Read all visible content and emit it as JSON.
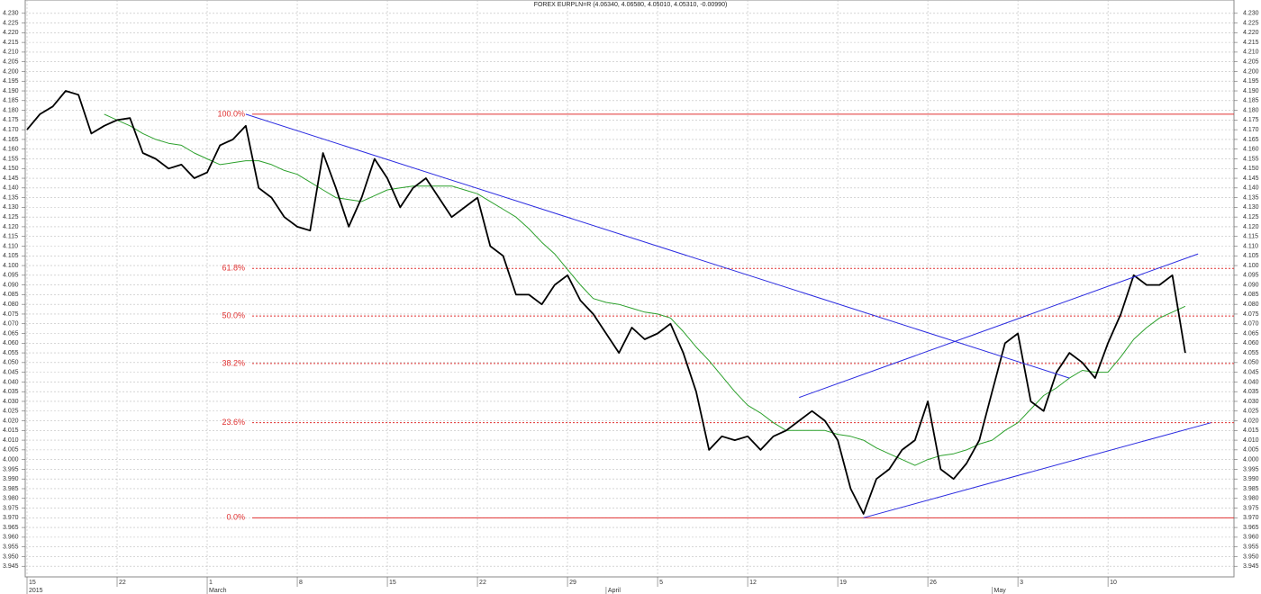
{
  "chart_data": {
    "type": "line",
    "title": "FOREX EURPLN=R (4.06340, 4.06580, 4.05010, 4.05310, -0.00990)",
    "x": [
      "2015-02-15",
      "2015-02-16",
      "2015-02-17",
      "2015-02-18",
      "2015-02-19",
      "2015-02-20",
      "2015-02-21",
      "2015-02-22",
      "2015-02-23",
      "2015-02-24",
      "2015-02-25",
      "2015-02-26",
      "2015-02-27",
      "2015-02-28",
      "2015-03-01",
      "2015-03-02",
      "2015-03-03",
      "2015-03-04",
      "2015-03-05",
      "2015-03-06",
      "2015-03-07",
      "2015-03-08",
      "2015-03-09",
      "2015-03-10",
      "2015-03-11",
      "2015-03-12",
      "2015-03-13",
      "2015-03-14",
      "2015-03-15",
      "2015-03-16",
      "2015-03-17",
      "2015-03-18",
      "2015-03-19",
      "2015-03-20",
      "2015-03-21",
      "2015-03-22",
      "2015-03-23",
      "2015-03-24",
      "2015-03-25",
      "2015-03-26",
      "2015-03-27",
      "2015-03-28",
      "2015-03-29",
      "2015-03-30",
      "2015-03-31",
      "2015-04-01",
      "2015-04-02",
      "2015-04-03",
      "2015-04-04",
      "2015-04-05",
      "2015-04-06",
      "2015-04-07",
      "2015-04-08",
      "2015-04-09",
      "2015-04-10",
      "2015-04-11",
      "2015-04-12",
      "2015-04-13",
      "2015-04-14",
      "2015-04-15",
      "2015-04-16",
      "2015-04-17",
      "2015-04-18",
      "2015-04-19",
      "2015-04-20",
      "2015-04-21",
      "2015-04-22",
      "2015-04-23",
      "2015-04-24",
      "2015-04-25",
      "2015-04-26",
      "2015-04-27",
      "2015-04-28",
      "2015-04-29",
      "2015-04-30",
      "2015-05-01",
      "2015-05-02",
      "2015-05-03",
      "2015-05-04",
      "2015-05-05",
      "2015-05-06",
      "2015-05-07",
      "2015-05-08",
      "2015-05-09",
      "2015-05-10",
      "2015-05-11",
      "2015-05-12",
      "2015-05-13",
      "2015-05-14",
      "2015-05-15",
      "2015-05-16"
    ],
    "price": {
      "color": "#000000",
      "values": [
        4.17,
        4.178,
        4.182,
        4.19,
        4.188,
        4.168,
        4.172,
        4.175,
        4.176,
        4.158,
        4.155,
        4.15,
        4.152,
        4.145,
        4.148,
        4.162,
        4.165,
        4.172,
        4.14,
        4.135,
        4.125,
        4.12,
        4.118,
        4.158,
        4.14,
        4.12,
        4.135,
        4.155,
        4.145,
        4.13,
        4.14,
        4.145,
        4.135,
        4.125,
        4.13,
        4.135,
        4.11,
        4.105,
        4.085,
        4.085,
        4.08,
        4.09,
        4.095,
        4.082,
        4.075,
        4.065,
        4.055,
        4.068,
        4.062,
        4.065,
        4.07,
        4.055,
        4.035,
        4.005,
        4.012,
        4.01,
        4.012,
        4.005,
        4.012,
        4.015,
        4.02,
        4.025,
        4.02,
        4.01,
        3.985,
        3.972,
        3.99,
        3.995,
        4.005,
        4.01,
        4.03,
        3.995,
        3.99,
        3.998,
        4.01,
        4.035,
        4.06,
        4.065,
        4.03,
        4.025,
        4.045,
        4.055,
        4.05,
        4.042,
        4.06,
        4.075,
        4.095,
        4.09,
        4.09,
        4.095,
        4.055
      ]
    },
    "moving_average": {
      "color": "#2ca02c",
      "values": [
        null,
        null,
        null,
        null,
        null,
        null,
        4.178,
        4.175,
        4.172,
        4.168,
        4.165,
        4.163,
        4.162,
        4.158,
        4.155,
        4.152,
        4.153,
        4.154,
        4.154,
        4.152,
        4.149,
        4.147,
        4.143,
        4.139,
        4.135,
        4.134,
        4.133,
        4.136,
        4.139,
        4.14,
        4.141,
        4.141,
        4.141,
        4.141,
        4.139,
        4.137,
        4.133,
        4.129,
        4.125,
        4.119,
        4.112,
        4.106,
        4.098,
        4.09,
        4.083,
        4.081,
        4.08,
        4.078,
        4.076,
        4.075,
        4.073,
        4.066,
        4.058,
        4.051,
        4.043,
        4.035,
        4.028,
        4.024,
        4.019,
        4.015,
        4.015,
        4.015,
        4.015,
        4.013,
        4.012,
        4.01,
        4.006,
        4.003,
        4.0,
        3.997,
        4.0,
        4.002,
        4.003,
        4.005,
        4.008,
        4.01,
        4.015,
        4.019,
        4.026,
        4.033,
        4.037,
        4.042,
        4.046,
        4.045,
        4.045,
        4.053,
        4.062,
        4.068,
        4.073,
        4.076,
        4.079
      ]
    },
    "trendlines": {
      "color": "#2b2be0",
      "lines": [
        {
          "x": [
            "2015-03-04",
            "2015-05-07"
          ],
          "values": [
            4.178,
            4.042
          ]
        },
        {
          "x": [
            "2015-04-16",
            "2015-05-17"
          ],
          "values": [
            4.032,
            4.106
          ]
        },
        {
          "x": [
            "2015-04-21",
            "2015-05-18"
          ],
          "values": [
            3.97,
            4.019
          ]
        }
      ]
    },
    "fib_levels": {
      "color": "#e03030",
      "levels": [
        {
          "label": "100.0%",
          "value": 4.178,
          "dashed": false
        },
        {
          "label": "61.8%",
          "value": 4.0985,
          "dashed": true
        },
        {
          "label": "50.0%",
          "value": 4.074,
          "dashed": true
        },
        {
          "label": "38.2%",
          "value": 4.0495,
          "dashed": true
        },
        {
          "label": "23.6%",
          "value": 4.019,
          "dashed": true
        },
        {
          "label": "0.0%",
          "value": 3.97,
          "dashed": false
        }
      ]
    },
    "xlim": [
      "2015-02-15",
      "2015-05-20"
    ],
    "xticks": [
      {
        "value": "2015-02-15",
        "label": "15"
      },
      {
        "value": "2015-02-22",
        "label": "22"
      },
      {
        "value": "2015-03-01",
        "label": "1"
      },
      {
        "value": "2015-03-08",
        "label": "8"
      },
      {
        "value": "2015-03-15",
        "label": "15"
      },
      {
        "value": "2015-03-22",
        "label": "22"
      },
      {
        "value": "2015-03-29",
        "label": "29"
      },
      {
        "value": "2015-04-05",
        "label": "5"
      },
      {
        "value": "2015-04-12",
        "label": "12"
      },
      {
        "value": "2015-04-19",
        "label": "19"
      },
      {
        "value": "2015-04-26",
        "label": "26"
      },
      {
        "value": "2015-05-03",
        "label": "3"
      },
      {
        "value": "2015-05-10",
        "label": "10"
      }
    ],
    "month_labels": [
      {
        "value": "2015-02-15",
        "label": "2015"
      },
      {
        "value": "2015-03-01",
        "label": "March"
      },
      {
        "value": "2015-04-01",
        "label": "April"
      },
      {
        "value": "2015-05-01",
        "label": "May"
      }
    ],
    "ylim": [
      3.94,
      4.235
    ],
    "yticks": [
      3.945,
      {
        "value": 3.95,
        "label": "3.950"
      },
      3.955,
      {
        "value": 3.96,
        "label": "3.960"
      },
      3.965,
      {
        "value": 3.97,
        "label": "3.970"
      },
      3.975,
      {
        "value": 3.98,
        "label": "3.980"
      },
      3.985,
      {
        "value": 3.99,
        "label": "3.990"
      },
      3.995,
      {
        "value": 4,
        "label": "4.000"
      },
      4.005,
      {
        "value": 4.01,
        "label": "4.010"
      },
      4.015,
      {
        "value": 4.02,
        "label": "4.020"
      },
      4.025,
      {
        "value": 4.03,
        "label": "4.030"
      },
      4.035,
      {
        "value": 4.04,
        "label": "4.040"
      },
      4.045,
      {
        "value": 4.05,
        "label": "4.050"
      },
      4.055,
      {
        "value": 4.06,
        "label": "4.060"
      },
      4.065,
      {
        "value": 4.07,
        "label": "4.070"
      },
      4.075,
      {
        "value": 4.08,
        "label": "4.080"
      },
      4.085,
      {
        "value": 4.09,
        "label": "4.090"
      },
      4.095,
      {
        "value": 4.1,
        "label": "4.100"
      },
      4.105,
      {
        "value": 4.11,
        "label": "4.110"
      },
      4.115,
      {
        "value": 4.12,
        "label": "4.120"
      },
      4.125,
      {
        "value": 4.13,
        "label": "4.130"
      },
      4.135,
      {
        "value": 4.14,
        "label": "4.140"
      },
      4.145,
      {
        "value": 4.15,
        "label": "4.150"
      },
      4.155,
      {
        "value": 4.16,
        "label": "4.160"
      },
      4.165,
      {
        "value": 4.17,
        "label": "4.170"
      },
      4.175,
      {
        "value": 4.18,
        "label": "4.180"
      },
      4.185,
      {
        "value": 4.19,
        "label": "4.190"
      },
      4.195,
      {
        "value": 4.2,
        "label": "4.200"
      },
      4.205,
      {
        "value": 4.21,
        "label": "4.210"
      },
      4.215,
      {
        "value": 4.22,
        "label": "4.220"
      },
      4.225,
      {
        "value": 4.23,
        "label": "4.230"
      }
    ],
    "grid": true
  }
}
